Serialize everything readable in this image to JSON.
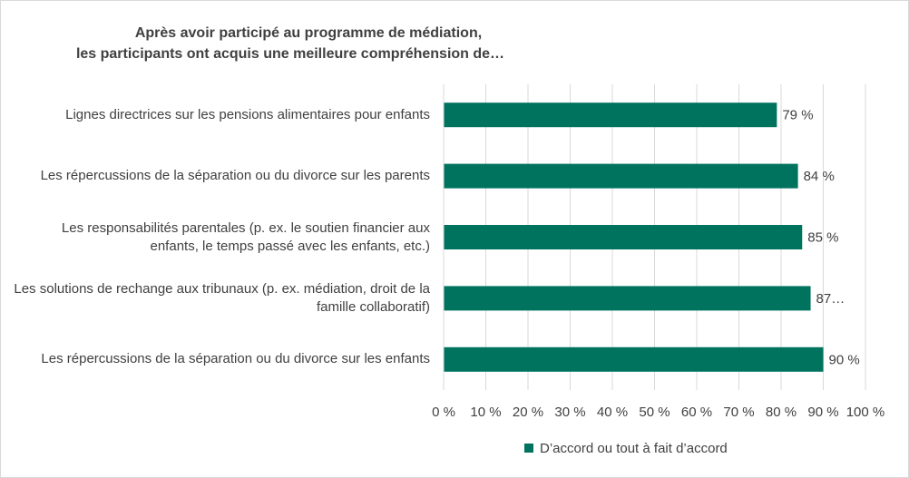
{
  "chart_data": {
    "type": "bar",
    "orientation": "horizontal",
    "title": [
      "Après avoir participé au programme de médiation,",
      "les participants ont acquis une meilleure compréhension de…"
    ],
    "categories": [
      "Lignes directrices sur les pensions alimentaires pour enfants",
      "Les répercussions de la séparation ou du divorce sur les parents",
      "Les responsabilités parentales (p. ex. le soutien financier aux enfants, le temps passé avec les enfants, etc.)",
      "Les solutions de rechange aux tribunaux (p. ex. médiation, droit de la famille collaboratif)",
      "Les répercussions de la séparation ou du divorce sur les enfants"
    ],
    "series": [
      {
        "name": "D’accord ou tout à fait d’accord",
        "color": "#00735f",
        "values": [
          79,
          84,
          85,
          87,
          90
        ],
        "value_labels": [
          "79 %",
          "84 %",
          "85 %",
          "87…",
          "90 %"
        ]
      }
    ],
    "xlim": [
      0,
      100
    ],
    "xticks": [
      {
        "value": 0,
        "label": "0 %"
      },
      {
        "value": 10,
        "label": "10 %"
      },
      {
        "value": 20,
        "label": "20 %"
      },
      {
        "value": 30,
        "label": "30 %"
      },
      {
        "value": 40,
        "label": "40 %"
      },
      {
        "value": 50,
        "label": "50 %"
      },
      {
        "value": 60,
        "label": "60 %"
      },
      {
        "value": 70,
        "label": "70 %"
      },
      {
        "value": 80,
        "label": "80 %"
      },
      {
        "value": 90,
        "label": "90 %"
      },
      {
        "value": 100,
        "label": "100 %"
      }
    ],
    "grid": true,
    "legend": "bottom"
  }
}
